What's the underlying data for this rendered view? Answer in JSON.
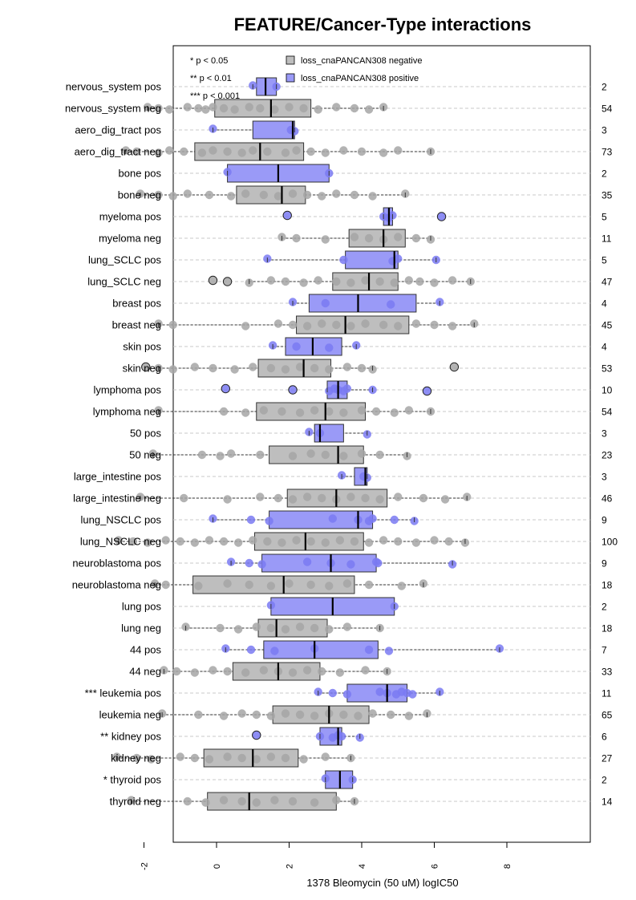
{
  "chart_data": {
    "type": "boxplot",
    "title": "FEATURE/Cancer-Type interactions",
    "xlabel": "1378 Bleomycin (50 uM) logIC50",
    "xlim": [
      -3.2,
      8.2
    ],
    "xticks": [
      -2,
      0,
      2,
      4,
      6,
      8
    ],
    "xtick_labels": [
      "-2",
      "0",
      "2",
      "4",
      "6",
      "8"
    ],
    "legend": {
      "placement": "top-left",
      "significance": [
        "* p < 0.05",
        "** p < 0.01",
        "*** p < 0.001"
      ],
      "series": [
        {
          "name": "loss_cnaPANCAN308 negative",
          "color": "#bebebe"
        },
        {
          "name": "loss_cnaPANCAN308 positive",
          "color": "#9a9af7"
        }
      ]
    },
    "colors": {
      "negative_fill": "#bebebe",
      "negative_point": "#a6a6a6",
      "positive_fill": "#9a9af7",
      "positive_point": "#7a7af2"
    },
    "rows": [
      {
        "label": "nervous_system pos",
        "n": "2",
        "group": "pos",
        "min": 1.0,
        "q1": 1.1,
        "median": 1.35,
        "q3": 1.65,
        "max": 1.65,
        "points": [
          1.0,
          1.65
        ]
      },
      {
        "label": "nervous_system neg",
        "n": "54",
        "group": "neg",
        "min": -1.9,
        "q1": -0.05,
        "median": 1.5,
        "q3": 2.6,
        "max": 4.6,
        "points": [
          -1.9,
          -1.6,
          -1.3,
          -0.8,
          -0.5,
          -0.3,
          -0.1,
          0.2,
          0.5,
          0.9,
          1.2,
          1.6,
          2.0,
          2.4,
          2.8,
          3.3,
          3.8,
          4.2,
          4.6
        ]
      },
      {
        "label": "aero_dig_tract pos",
        "n": "3",
        "group": "pos",
        "min": -0.1,
        "q1": 1.0,
        "median": 2.1,
        "q3": 2.15,
        "max": 2.15,
        "points": [
          -0.1,
          2.05,
          2.15
        ]
      },
      {
        "label": "aero_dig_tract neg",
        "n": "73",
        "group": "neg",
        "min": -2.5,
        "q1": -0.6,
        "median": 1.2,
        "q3": 2.4,
        "max": 5.9,
        "points": [
          -2.5,
          -2.2,
          -1.6,
          -1.3,
          -0.9,
          -0.4,
          -0.1,
          0.3,
          0.7,
          1.0,
          1.4,
          1.9,
          2.2,
          2.6,
          3.0,
          3.5,
          4.0,
          4.6,
          5.0,
          5.9
        ]
      },
      {
        "label": "bone pos",
        "n": "2",
        "group": "pos",
        "min": 0.3,
        "q1": 0.3,
        "median": 1.7,
        "q3": 3.1,
        "max": 3.1,
        "points": [
          0.3,
          3.1
        ]
      },
      {
        "label": "bone neg",
        "n": "35",
        "group": "neg",
        "min": -2.1,
        "q1": 0.55,
        "median": 1.8,
        "q3": 2.45,
        "max": 5.2,
        "points": [
          -2.1,
          -1.6,
          -1.2,
          -0.8,
          -0.2,
          0.4,
          0.8,
          1.3,
          1.7,
          2.1,
          2.5,
          2.9,
          3.3,
          3.8,
          4.3,
          5.2
        ]
      },
      {
        "label": "myeloma pos",
        "n": "5",
        "group": "pos",
        "min": 4.6,
        "q1": 4.6,
        "median": 4.75,
        "q3": 4.85,
        "max": 4.85,
        "points": [
          1.95,
          4.6,
          4.75,
          4.85,
          6.2
        ]
      },
      {
        "label": "myeloma neg",
        "n": "11",
        "group": "neg",
        "min": 1.8,
        "q1": 3.65,
        "median": 4.6,
        "q3": 5.2,
        "max": 5.9,
        "points": [
          1.8,
          2.2,
          3.0,
          3.8,
          4.2,
          4.6,
          5.0,
          5.5,
          5.9
        ]
      },
      {
        "label": "lung_SCLC pos",
        "n": "5",
        "group": "pos",
        "min": 1.4,
        "q1": 3.55,
        "median": 4.9,
        "q3": 5.0,
        "max": 6.05,
        "points": [
          1.4,
          3.5,
          4.85,
          5.0,
          6.05
        ]
      },
      {
        "label": "lung_SCLC neg",
        "n": "47",
        "group": "neg",
        "min": 0.9,
        "q1": 3.2,
        "median": 4.2,
        "q3": 5.0,
        "max": 7.0,
        "points": [
          -0.1,
          0.3,
          0.9,
          1.5,
          1.9,
          2.4,
          2.8,
          3.3,
          3.7,
          4.1,
          4.5,
          4.9,
          5.3,
          5.6,
          6.0,
          6.5,
          7.0
        ]
      },
      {
        "label": "breast pos",
        "n": "4",
        "group": "pos",
        "min": 2.1,
        "q1": 2.55,
        "median": 3.9,
        "q3": 5.5,
        "max": 6.15,
        "points": [
          2.1,
          3.0,
          4.8,
          6.15
        ]
      },
      {
        "label": "breast neg",
        "n": "45",
        "group": "neg",
        "min": -1.6,
        "q1": 2.2,
        "median": 3.55,
        "q3": 5.3,
        "max": 7.1,
        "points": [
          -1.6,
          -1.2,
          0.8,
          1.7,
          2.1,
          2.5,
          2.9,
          3.3,
          3.7,
          4.1,
          4.6,
          5.0,
          5.5,
          6.0,
          6.5,
          7.1
        ]
      },
      {
        "label": "skin pos",
        "n": "4",
        "group": "pos",
        "min": 1.55,
        "q1": 1.9,
        "median": 2.65,
        "q3": 3.45,
        "max": 3.85,
        "points": [
          1.55,
          2.2,
          3.1,
          3.85
        ]
      },
      {
        "label": "skin neg",
        "n": "53",
        "group": "neg",
        "min": -1.6,
        "q1": 1.15,
        "median": 2.4,
        "q3": 3.15,
        "max": 4.3,
        "points": [
          -1.95,
          -1.6,
          -1.2,
          -0.6,
          -0.1,
          0.5,
          1.0,
          1.5,
          1.9,
          2.3,
          2.7,
          3.1,
          3.6,
          4.0,
          4.3,
          6.55
        ]
      },
      {
        "label": "lymphoma pos",
        "n": "10",
        "group": "pos",
        "min": 3.05,
        "q1": 3.05,
        "median": 3.35,
        "q3": 3.6,
        "max": 4.3,
        "points": [
          0.25,
          2.1,
          3.1,
          3.25,
          3.35,
          3.5,
          3.6,
          4.3,
          5.8
        ]
      },
      {
        "label": "lymphoma neg",
        "n": "54",
        "group": "neg",
        "min": -1.6,
        "q1": 1.1,
        "median": 3.0,
        "q3": 4.1,
        "max": 5.9,
        "points": [
          -1.6,
          0.2,
          0.8,
          1.3,
          1.8,
          2.3,
          2.7,
          3.1,
          3.5,
          4.0,
          4.4,
          4.9,
          5.3,
          5.9
        ]
      },
      {
        "label": "50 pos",
        "n": "3",
        "group": "pos",
        "min": 2.55,
        "q1": 2.7,
        "median": 2.85,
        "q3": 3.5,
        "max": 4.15,
        "points": [
          2.55,
          2.85,
          4.15
        ]
      },
      {
        "label": "50 neg",
        "n": "23",
        "group": "neg",
        "min": -1.75,
        "q1": 1.45,
        "median": 3.35,
        "q3": 4.05,
        "max": 5.25,
        "points": [
          -1.75,
          -0.4,
          0.1,
          0.4,
          1.2,
          2.1,
          2.6,
          3.0,
          3.5,
          4.0,
          4.5,
          5.25
        ]
      },
      {
        "label": "large_intestine pos",
        "n": "3",
        "group": "pos",
        "min": 3.45,
        "q1": 3.8,
        "median": 4.1,
        "q3": 4.15,
        "max": 4.15,
        "points": [
          3.45,
          4.05,
          4.15
        ]
      },
      {
        "label": "large_intestine neg",
        "n": "46",
        "group": "neg",
        "min": -2.1,
        "q1": 1.95,
        "median": 3.3,
        "q3": 4.7,
        "max": 6.9,
        "points": [
          -2.1,
          -0.9,
          0.3,
          1.2,
          1.7,
          2.1,
          2.5,
          2.9,
          3.3,
          3.7,
          4.1,
          4.5,
          5.0,
          5.7,
          6.3,
          6.9
        ]
      },
      {
        "label": "lung_NSCLC pos",
        "n": "9",
        "group": "pos",
        "min": -0.1,
        "q1": 1.45,
        "median": 3.9,
        "q3": 4.3,
        "max": 5.45,
        "points": [
          -0.1,
          0.95,
          1.45,
          3.2,
          3.9,
          4.2,
          4.3,
          4.9,
          5.45
        ]
      },
      {
        "label": "lung_NSCLC neg",
        "n": "100",
        "group": "neg",
        "min": -2.7,
        "q1": 1.05,
        "median": 2.45,
        "q3": 4.05,
        "max": 6.85,
        "points": [
          -2.7,
          -2.3,
          -1.9,
          -1.4,
          -1.0,
          -0.6,
          -0.2,
          0.2,
          0.6,
          1.0,
          1.4,
          1.8,
          2.2,
          2.6,
          3.0,
          3.4,
          3.8,
          4.2,
          4.6,
          5.0,
          5.5,
          6.0,
          6.4,
          6.85
        ]
      },
      {
        "label": "neuroblastoma pos",
        "n": "9",
        "group": "pos",
        "min": 0.4,
        "q1": 1.25,
        "median": 3.15,
        "q3": 4.4,
        "max": 6.5,
        "points": [
          0.4,
          0.9,
          1.25,
          2.5,
          3.15,
          3.7,
          4.4,
          4.45,
          6.5
        ]
      },
      {
        "label": "neuroblastoma neg",
        "n": "18",
        "group": "neg",
        "min": -1.7,
        "q1": -0.65,
        "median": 1.85,
        "q3": 3.8,
        "max": 5.7,
        "points": [
          -1.7,
          -1.4,
          -0.5,
          0.3,
          0.9,
          1.5,
          2.0,
          2.6,
          3.1,
          3.6,
          4.2,
          5.1,
          5.7
        ]
      },
      {
        "label": "lung pos",
        "n": "2",
        "group": "pos",
        "min": 1.5,
        "q1": 1.5,
        "median": 3.2,
        "q3": 4.9,
        "max": 4.9,
        "points": [
          1.5,
          4.9
        ]
      },
      {
        "label": "lung neg",
        "n": "18",
        "group": "neg",
        "min": -0.85,
        "q1": 1.15,
        "median": 1.65,
        "q3": 3.05,
        "max": 4.5,
        "points": [
          -0.85,
          0.1,
          0.6,
          1.1,
          1.5,
          1.9,
          2.3,
          2.7,
          3.1,
          3.6,
          4.5
        ]
      },
      {
        "label": "44 pos",
        "n": "7",
        "group": "pos",
        "min": 0.25,
        "q1": 1.3,
        "median": 2.7,
        "q3": 4.45,
        "max": 7.8,
        "points": [
          0.25,
          0.95,
          1.6,
          2.7,
          4.2,
          4.75,
          7.8
        ]
      },
      {
        "label": "44 neg",
        "n": "33",
        "group": "neg",
        "min": -1.45,
        "q1": 0.45,
        "median": 1.7,
        "q3": 2.85,
        "max": 4.7,
        "points": [
          -1.45,
          -1.1,
          -0.6,
          -0.1,
          0.3,
          0.8,
          1.3,
          1.7,
          2.1,
          2.5,
          2.9,
          3.4,
          4.1,
          4.7
        ]
      },
      {
        "label": "*** leukemia pos",
        "n": "11",
        "group": "pos",
        "min": 2.8,
        "q1": 3.6,
        "median": 4.7,
        "q3": 5.25,
        "max": 6.15,
        "points": [
          2.8,
          3.2,
          3.6,
          4.5,
          4.7,
          4.95,
          5.1,
          5.25,
          5.4,
          6.15
        ]
      },
      {
        "label": "leukemia neg",
        "n": "65",
        "group": "neg",
        "min": -1.5,
        "q1": 1.55,
        "median": 3.1,
        "q3": 4.2,
        "max": 5.8,
        "points": [
          -1.5,
          -0.5,
          0.2,
          0.7,
          1.1,
          1.5,
          1.9,
          2.3,
          2.7,
          3.1,
          3.5,
          3.9,
          4.3,
          4.8,
          5.3,
          5.8
        ]
      },
      {
        "label": "** kidney pos",
        "n": "6",
        "group": "pos",
        "min": 2.85,
        "q1": 2.85,
        "median": 3.35,
        "q3": 3.45,
        "max": 3.95,
        "points": [
          1.1,
          2.85,
          3.2,
          3.35,
          3.45,
          3.95
        ]
      },
      {
        "label": "kidney neg",
        "n": "27",
        "group": "neg",
        "min": -2.75,
        "q1": -0.35,
        "median": 1.0,
        "q3": 2.25,
        "max": 3.7,
        "points": [
          -2.75,
          -2.2,
          -1.8,
          -1.0,
          -0.6,
          -0.2,
          0.3,
          0.7,
          1.1,
          1.5,
          1.9,
          2.4,
          3.0,
          3.7
        ]
      },
      {
        "label": "* thyroid pos",
        "n": "2",
        "group": "pos",
        "min": 3.0,
        "q1": 3.0,
        "median": 3.4,
        "q3": 3.75,
        "max": 3.75,
        "points": [
          3.0,
          3.75
        ]
      },
      {
        "label": "thyroid neg",
        "n": "14",
        "group": "neg",
        "min": -2.35,
        "q1": -0.25,
        "median": 0.9,
        "q3": 3.3,
        "max": 3.8,
        "points": [
          -2.35,
          -0.8,
          -0.3,
          0.2,
          0.7,
          1.1,
          1.6,
          2.1,
          2.7,
          3.3,
          3.8
        ]
      }
    ]
  }
}
